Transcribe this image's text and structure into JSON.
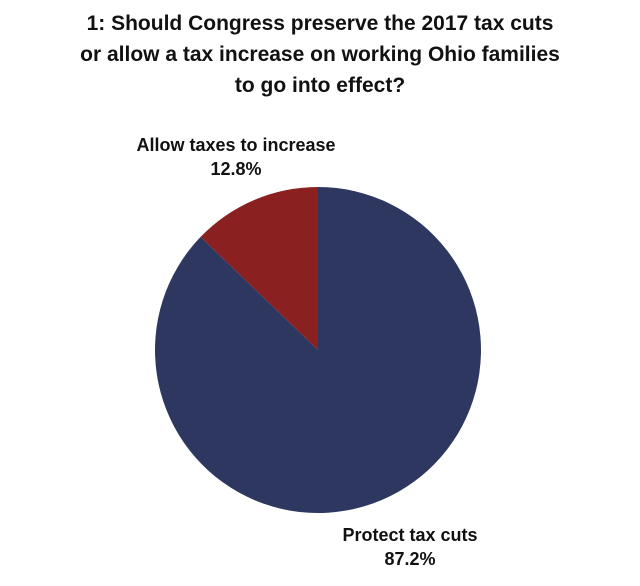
{
  "chart_data": {
    "type": "pie",
    "title_lines": [
      "1: Should Congress preserve the 2017 tax cuts",
      "or allow a tax increase on working Ohio families",
      "to go into effect?"
    ],
    "slices": [
      {
        "label": "Allow taxes to increase",
        "value": 12.8,
        "value_label": "12.8%",
        "color": "#8b2020"
      },
      {
        "label": "Protect tax cuts",
        "value": 87.2,
        "value_label": "87.2%",
        "color": "#2e3760"
      }
    ],
    "start": "12 o'clock",
    "direction": "counter-clockwise"
  }
}
